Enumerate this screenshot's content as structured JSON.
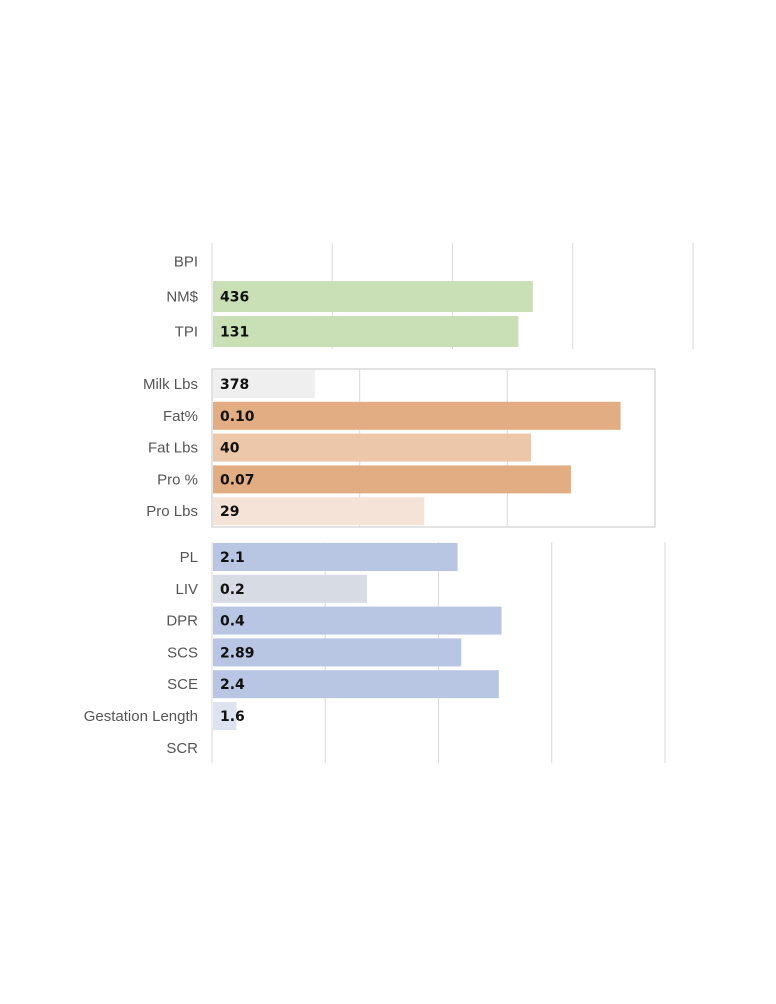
{
  "chart_data": [
    {
      "type": "bar",
      "orientation": "horizontal",
      "categories": [
        "BPI",
        "NM$",
        "TPI"
      ],
      "values": [
        null,
        436,
        131
      ],
      "value_labels": [
        "",
        "436",
        "131"
      ],
      "bar_fraction": [
        null,
        0.665,
        0.635
      ],
      "bar_colors": [
        "#c9dfb6",
        "#c9dfb6",
        "#c9dfb6"
      ],
      "grid": true,
      "gridlines": 4
    },
    {
      "type": "bar",
      "orientation": "horizontal",
      "categories": [
        "Milk Lbs",
        "Fat%",
        "Fat Lbs",
        "Pro %",
        "Pro Lbs"
      ],
      "values": [
        378,
        0.1,
        40,
        0.07,
        29
      ],
      "value_labels": [
        "378",
        "0.10",
        "40",
        "0.07",
        "29"
      ],
      "bar_fraction": [
        0.23,
        0.92,
        0.718,
        0.808,
        0.477
      ],
      "bar_colors": [
        "#efefef",
        "#e2ad82",
        "#edc7aa",
        "#e2ad82",
        "#f4e3d6"
      ],
      "grid": true,
      "gridlines": 3,
      "framed": true
    },
    {
      "type": "bar",
      "orientation": "horizontal",
      "categories": [
        "PL",
        "LIV",
        "DPR",
        "SCS",
        "SCE",
        "Gestation Length",
        "SCR"
      ],
      "values": [
        2.1,
        0.2,
        0.4,
        2.89,
        2.4,
        1.6,
        null
      ],
      "value_labels": [
        "2.1",
        "0.2",
        "0.4",
        "2.89",
        "2.4",
        "1.6",
        ""
      ],
      "bar_fraction": [
        0.54,
        0.34,
        0.637,
        0.548,
        0.631,
        0.052,
        null
      ],
      "bar_colors": [
        "#b9c6e3",
        "#d6dbe4",
        "#b9c6e3",
        "#b9c6e3",
        "#b9c6e3",
        "#dde3f1",
        "#b9c6e3"
      ],
      "grid": true,
      "gridlines": 4
    }
  ]
}
